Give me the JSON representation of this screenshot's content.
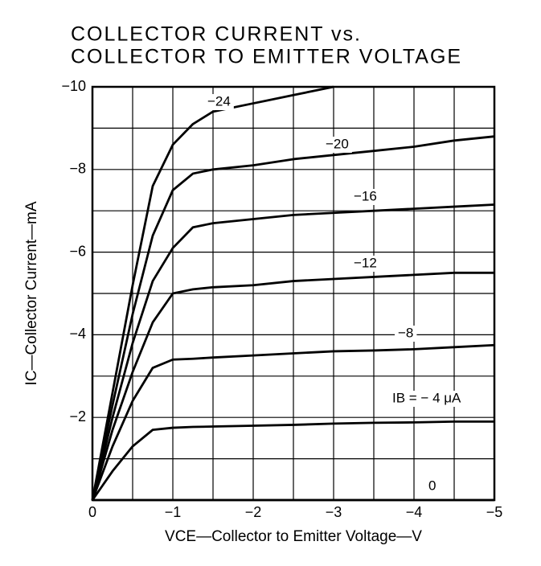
{
  "chart_data": {
    "type": "line",
    "title": [
      "COLLECTOR CURRENT vs.",
      "COLLECTOR TO EMITTER VOLTAGE"
    ],
    "x_label": "VCE—Collector to Emitter Voltage—V",
    "y_label": "IC—Collector Current—mA",
    "x": [
      0,
      -0.25,
      -0.5,
      -0.75,
      -1,
      -1.25,
      -1.5,
      -2,
      -2.5,
      -3,
      -3.5,
      -4,
      -4.5,
      -5
    ],
    "series": [
      {
        "name": "−24",
        "color": "#000000",
        "values": [
          0,
          -2.6,
          -5.2,
          -7.6,
          -8.6,
          -9.1,
          -9.4,
          -9.6,
          -9.8,
          -10,
          null,
          null,
          null,
          null
        ]
      },
      {
        "name": "−20",
        "color": "#000000",
        "values": [
          0,
          -2.3,
          -4.5,
          -6.4,
          -7.5,
          -7.9,
          -8.0,
          -8.1,
          -8.25,
          -8.35,
          -8.45,
          -8.55,
          -8.7,
          -8.8
        ]
      },
      {
        "name": "−16",
        "color": "#000000",
        "values": [
          0,
          -2.0,
          -3.8,
          -5.3,
          -6.1,
          -6.6,
          -6.7,
          -6.8,
          -6.9,
          -6.95,
          -7.0,
          -7.05,
          -7.1,
          -7.15
        ]
      },
      {
        "name": "−12",
        "color": "#000000",
        "values": [
          0,
          -1.7,
          -3.1,
          -4.3,
          -5.0,
          -5.1,
          -5.15,
          -5.2,
          -5.3,
          -5.35,
          -5.4,
          -5.45,
          -5.5,
          -5.5
        ]
      },
      {
        "name": "−8",
        "color": "#000000",
        "values": [
          0,
          -1.3,
          -2.4,
          -3.2,
          -3.4,
          -3.42,
          -3.45,
          -3.5,
          -3.55,
          -3.6,
          -3.62,
          -3.65,
          -3.7,
          -3.75
        ]
      },
      {
        "name": "IB = − 4 μA",
        "color": "#000000",
        "values": [
          0,
          -0.7,
          -1.3,
          -1.7,
          -1.75,
          -1.77,
          -1.78,
          -1.8,
          -1.82,
          -1.85,
          -1.87,
          -1.88,
          -1.9,
          -1.9
        ]
      },
      {
        "name": "0",
        "color": "#000000",
        "values": [
          0,
          0,
          0,
          0,
          0,
          0,
          0,
          0,
          0,
          0,
          0,
          0,
          0,
          0
        ]
      }
    ],
    "xlim": [
      0,
      -5
    ],
    "ylim": [
      0,
      -10
    ],
    "xticks": [
      0,
      {
        "value": -1,
        "label": "−1"
      },
      {
        "value": -2,
        "label": "−2"
      },
      {
        "value": -3,
        "label": "−3"
      },
      {
        "value": -4,
        "label": "−4"
      },
      {
        "value": -5,
        "label": "−5"
      }
    ],
    "yticks": [
      {
        "value": -2,
        "label": "−2"
      },
      {
        "value": -4,
        "label": "−4"
      },
      {
        "value": -6,
        "label": "−6"
      },
      {
        "value": -8,
        "label": "−8"
      },
      {
        "value": -10,
        "label": "−10"
      }
    ],
    "grid": true
  }
}
